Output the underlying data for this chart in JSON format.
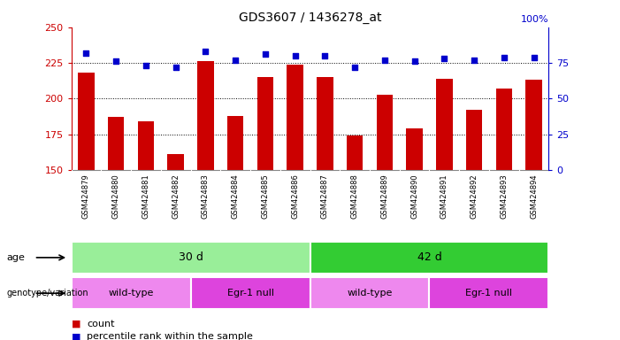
{
  "title": "GDS3607 / 1436278_at",
  "samples": [
    "GSM424879",
    "GSM424880",
    "GSM424881",
    "GSM424882",
    "GSM424883",
    "GSM424884",
    "GSM424885",
    "GSM424886",
    "GSM424887",
    "GSM424888",
    "GSM424889",
    "GSM424890",
    "GSM424891",
    "GSM424892",
    "GSM424893",
    "GSM424894"
  ],
  "counts": [
    218,
    187,
    184,
    161,
    226,
    188,
    215,
    224,
    215,
    174,
    203,
    179,
    214,
    192,
    207,
    213
  ],
  "percentiles": [
    82,
    76,
    73,
    72,
    83,
    77,
    81,
    80,
    80,
    72,
    77,
    76,
    78,
    77,
    79,
    79
  ],
  "bar_color": "#cc0000",
  "dot_color": "#0000cc",
  "ylim_left": [
    150,
    250
  ],
  "ylim_right": [
    0,
    100
  ],
  "yticks_left": [
    150,
    175,
    200,
    225,
    250
  ],
  "yticks_right": [
    0,
    25,
    50,
    75
  ],
  "age_groups": [
    {
      "label": "30 d",
      "start": 0,
      "end": 8,
      "color": "#99ee99"
    },
    {
      "label": "42 d",
      "start": 8,
      "end": 16,
      "color": "#33cc33"
    }
  ],
  "genotype_groups": [
    {
      "label": "wild-type",
      "start": 0,
      "end": 4,
      "color": "#ee88ee"
    },
    {
      "label": "Egr-1 null",
      "start": 4,
      "end": 8,
      "color": "#dd44dd"
    },
    {
      "label": "wild-type",
      "start": 8,
      "end": 12,
      "color": "#ee88ee"
    },
    {
      "label": "Egr-1 null",
      "start": 12,
      "end": 16,
      "color": "#dd44dd"
    }
  ],
  "legend_count_color": "#cc0000",
  "legend_dot_color": "#0000cc",
  "plot_bg": "#ffffff",
  "tick_bg": "#cccccc",
  "right_axis_color": "#0000cc",
  "left_axis_color": "#cc0000",
  "grid_color": "#000000",
  "top_right_label": "100%"
}
